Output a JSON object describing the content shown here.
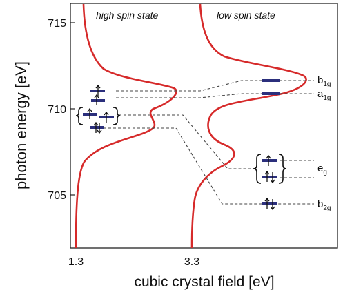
{
  "axes": {
    "y_label": "photon energy [eV]",
    "x_label": "cubic crystal field [eV]",
    "y_ticks": [
      "715",
      "710",
      "705"
    ],
    "x_ticks": [
      "1.3",
      "3.3"
    ]
  },
  "panels": {
    "high_spin_title": "high spin state",
    "low_spin_title": "low spin state"
  },
  "orbital_labels": {
    "b1g_main": "b",
    "b1g_sub": "1g",
    "a1g_main": "a",
    "a1g_sub": "1g",
    "eg_main": "e",
    "eg_sub": "g",
    "b2g_main": "b",
    "b2g_sub": "2g"
  },
  "colors": {
    "curve": "#d62a2a",
    "level": "#2b2f7c"
  }
}
